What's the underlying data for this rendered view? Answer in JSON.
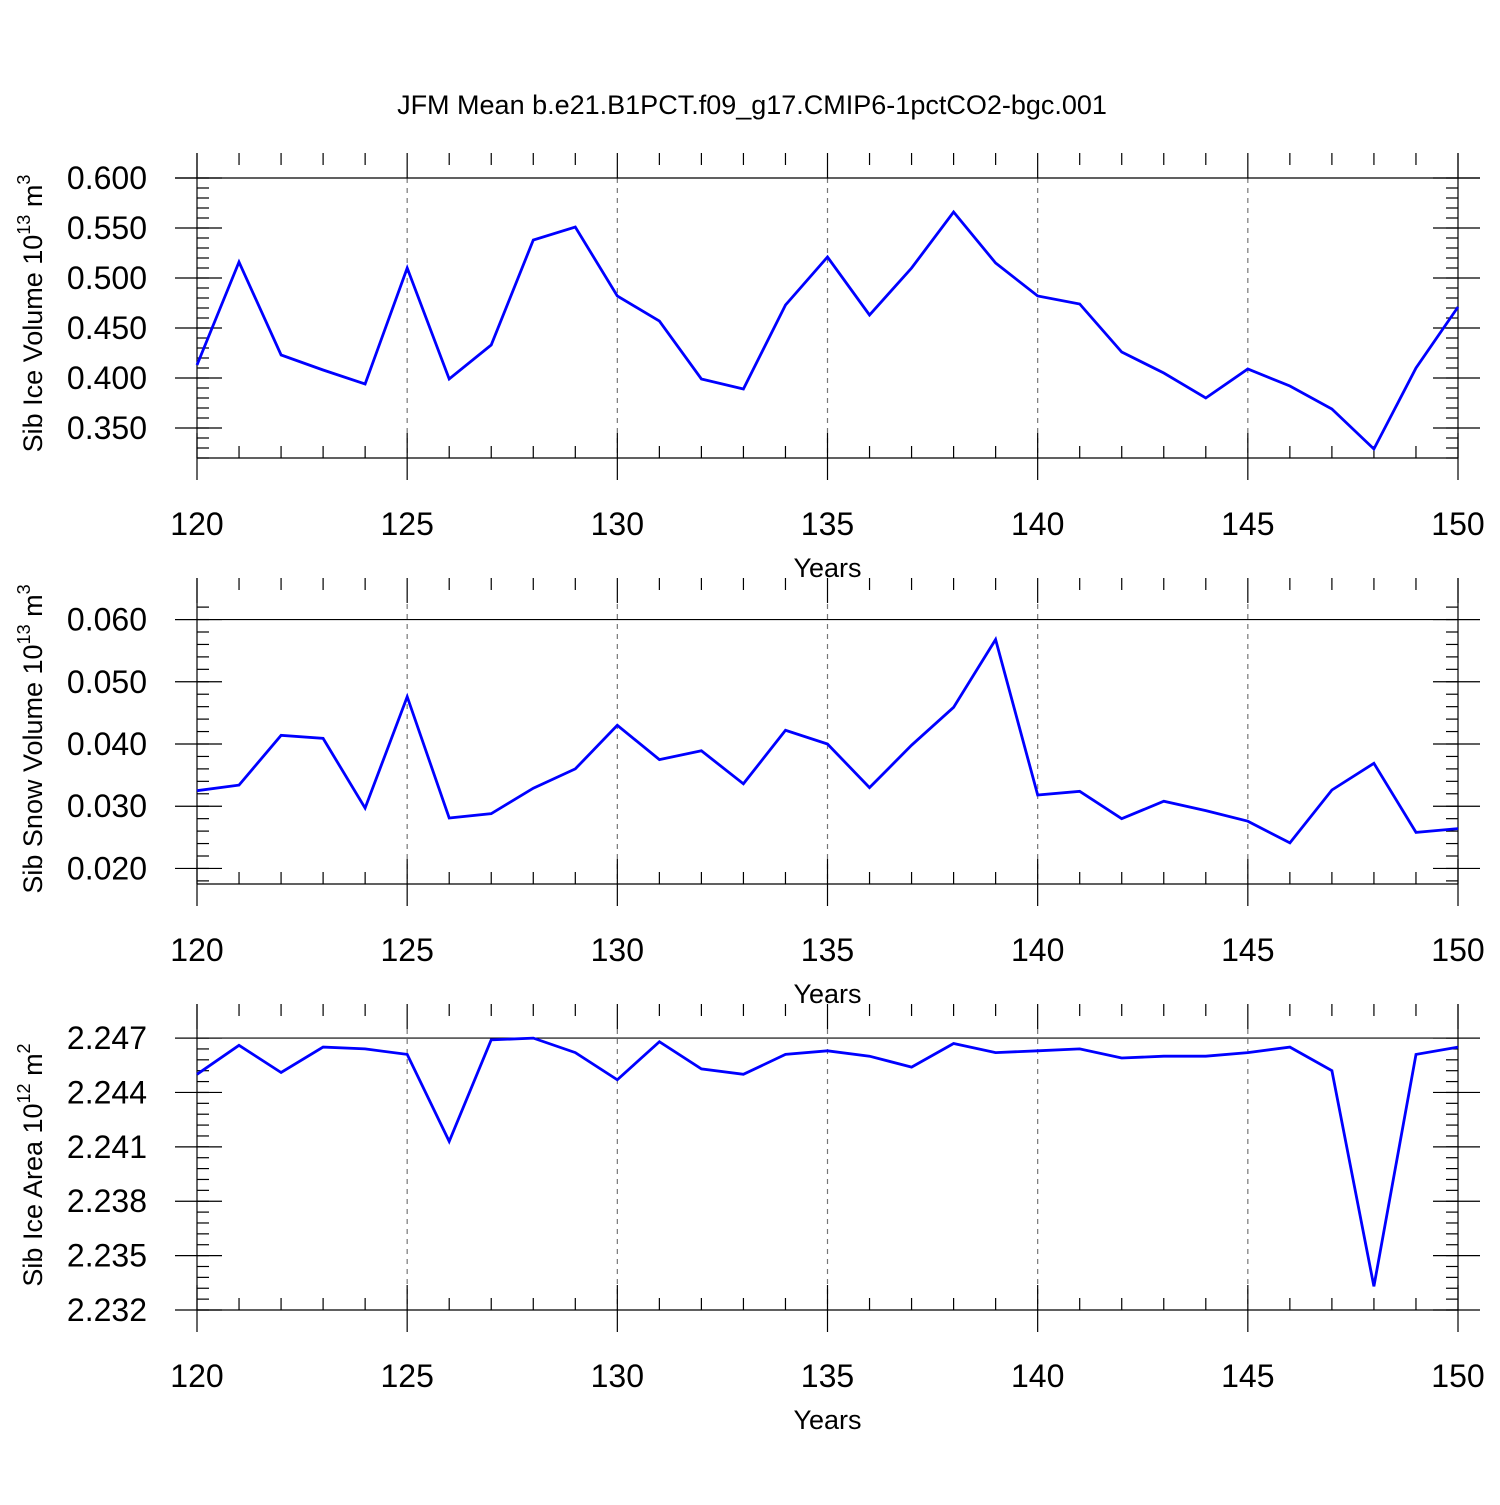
{
  "title": "JFM Mean b.e21.B1PCT.f09_g17.CMIP6-1pctCO2-bgc.001",
  "line_color": "#0000ff",
  "chart_data": [
    {
      "type": "line",
      "ylabel_main": "Sib Ice Volume 10",
      "ylabel_exp": "13",
      "ylabel_unit": " m",
      "ylabel_unit_exp": "3",
      "xlabel": "Years",
      "xlim": [
        120,
        150
      ],
      "ylim": [
        0.32,
        0.6
      ],
      "yticks": [
        0.35,
        0.4,
        0.45,
        0.5,
        0.55,
        0.6
      ],
      "ytick_labels": [
        "0.350",
        "0.400",
        "0.450",
        "0.500",
        "0.550",
        "0.600"
      ],
      "xticks": [
        120,
        125,
        130,
        135,
        140,
        145,
        150
      ],
      "xtick_labels": [
        "120",
        "125",
        "130",
        "135",
        "140",
        "145",
        "150"
      ],
      "ref_line": 0.6,
      "x": [
        120,
        121,
        122,
        123,
        124,
        125,
        126,
        127,
        128,
        129,
        130,
        131,
        132,
        133,
        134,
        135,
        136,
        137,
        138,
        139,
        140,
        141,
        142,
        143,
        144,
        145,
        146,
        147,
        148,
        149,
        150
      ],
      "values": [
        0.413,
        0.516,
        0.423,
        0.408,
        0.394,
        0.51,
        0.399,
        0.433,
        0.538,
        0.551,
        0.482,
        0.457,
        0.399,
        0.389,
        0.473,
        0.521,
        0.463,
        0.51,
        0.566,
        0.515,
        0.482,
        0.474,
        0.426,
        0.405,
        0.38,
        0.409,
        0.392,
        0.369,
        0.329,
        0.41,
        0.471
      ]
    },
    {
      "type": "line",
      "ylabel_main": "Sib Snow Volume 10",
      "ylabel_exp": "13",
      "ylabel_unit": " m",
      "ylabel_unit_exp": "3",
      "xlabel": "Years",
      "xlim": [
        120,
        150
      ],
      "ylim": [
        0.0175,
        0.0625
      ],
      "yticks": [
        0.02,
        0.03,
        0.04,
        0.05,
        0.06
      ],
      "ytick_labels": [
        "0.020",
        "0.030",
        "0.040",
        "0.050",
        "0.060"
      ],
      "xticks": [
        120,
        125,
        130,
        135,
        140,
        145,
        150
      ],
      "xtick_labels": [
        "120",
        "125",
        "130",
        "135",
        "140",
        "145",
        "150"
      ],
      "ref_line": 0.06,
      "x": [
        120,
        121,
        122,
        123,
        124,
        125,
        126,
        127,
        128,
        129,
        130,
        131,
        132,
        133,
        134,
        135,
        136,
        137,
        138,
        139,
        140,
        141,
        142,
        143,
        144,
        145,
        146,
        147,
        148,
        149,
        150
      ],
      "values": [
        0.0325,
        0.0334,
        0.0414,
        0.0409,
        0.0297,
        0.0476,
        0.0281,
        0.0288,
        0.0329,
        0.036,
        0.043,
        0.0375,
        0.0389,
        0.0336,
        0.0422,
        0.04,
        0.033,
        0.0398,
        0.0459,
        0.0568,
        0.0318,
        0.0324,
        0.028,
        0.0308,
        0.0293,
        0.0276,
        0.0241,
        0.0326,
        0.0369,
        0.0258,
        0.0264
      ]
    },
    {
      "type": "line",
      "ylabel_main": "Sib Ice Area 10",
      "ylabel_exp": "12",
      "ylabel_unit": " m",
      "ylabel_unit_exp": "2",
      "xlabel": "Years",
      "xlim": [
        120,
        150
      ],
      "ylim": [
        2.232,
        2.2475
      ],
      "yticks": [
        2.232,
        2.235,
        2.238,
        2.241,
        2.244,
        2.247
      ],
      "ytick_labels": [
        "2.232",
        "2.235",
        "2.238",
        "2.241",
        "2.244",
        "2.247"
      ],
      "xticks": [
        120,
        125,
        130,
        135,
        140,
        145,
        150
      ],
      "xtick_labels": [
        "120",
        "125",
        "130",
        "135",
        "140",
        "145",
        "150"
      ],
      "ref_line": 2.247,
      "x": [
        120,
        121,
        122,
        123,
        124,
        125,
        126,
        127,
        128,
        129,
        130,
        131,
        132,
        133,
        134,
        135,
        136,
        137,
        138,
        139,
        140,
        141,
        142,
        143,
        144,
        145,
        146,
        147,
        148,
        149,
        150
      ],
      "values": [
        2.245,
        2.2466,
        2.2451,
        2.2465,
        2.2464,
        2.2461,
        2.2413,
        2.2469,
        2.247,
        2.2462,
        2.2447,
        2.2468,
        2.2453,
        2.245,
        2.2461,
        2.2463,
        2.246,
        2.2454,
        2.2467,
        2.2462,
        2.2463,
        2.2464,
        2.2459,
        2.246,
        2.246,
        2.2462,
        2.2465,
        2.2452,
        2.2333,
        2.2461,
        2.2465
      ]
    }
  ]
}
